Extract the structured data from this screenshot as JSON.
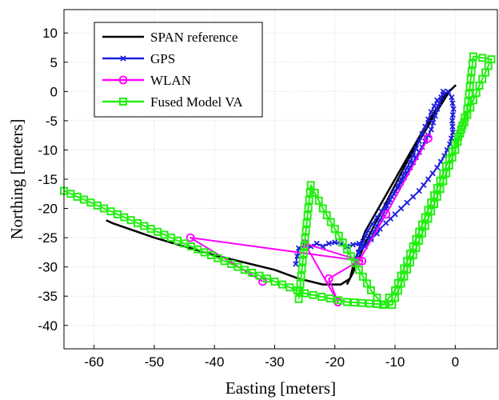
{
  "chart_data": {
    "type": "line",
    "title": "",
    "xlabel": "Easting [meters]",
    "ylabel": "Northing [meters]",
    "xlim": [
      -65,
      7
    ],
    "ylim": [
      -44,
      14
    ],
    "xticks": [
      -60,
      -50,
      -40,
      -30,
      -20,
      -10,
      0
    ],
    "yticks": [
      10,
      5,
      0,
      -5,
      -10,
      -15,
      -20,
      -25,
      -30,
      -35,
      -40
    ],
    "grid": true,
    "legend_position": "top-left",
    "series": [
      {
        "name": "SPAN reference",
        "color": "#000000",
        "marker": "none",
        "x": [
          -58,
          -57,
          -50,
          -40,
          -30,
          -26,
          -22,
          -19,
          -17.5,
          -17,
          -15,
          -10,
          -5,
          -2,
          0,
          -1,
          -4,
          -8,
          -12,
          -15,
          -17,
          -18
        ],
        "y": [
          -22,
          -22.5,
          -25,
          -28,
          -30.5,
          -32,
          -33,
          -33,
          -32,
          -30,
          -24,
          -15,
          -6,
          -1,
          1,
          0,
          -5,
          -12,
          -20,
          -26,
          -31,
          -33
        ]
      },
      {
        "name": "GPS",
        "color": "#1f1fe0",
        "marker": "x",
        "x": [
          -26.5,
          -26,
          -25,
          -24,
          -23,
          -22,
          -21,
          -20,
          -19,
          -18,
          -17,
          -16,
          -15,
          -14,
          -13,
          -12,
          -11,
          -10,
          -9,
          -8,
          -7,
          -6,
          -5,
          -4,
          -3,
          -2,
          -1.2,
          -0.6,
          -0.3,
          -0.5,
          -0.4,
          -0.9,
          -1.8,
          -3,
          -4.5,
          -6,
          -8,
          -10,
          -11.5,
          -12.5,
          -13,
          -14,
          -15,
          -16,
          -16.5,
          -14.5,
          -13,
          -11.5,
          -9.5,
          -7.5,
          -5.5,
          -4,
          -3,
          -2
        ],
        "y": [
          -29.5,
          -26.8,
          -26.3,
          -26.5,
          -26,
          -26.5,
          -26,
          -25.8,
          -26,
          -26.5,
          -26.2,
          -26,
          -26.5,
          -25,
          -23,
          -21,
          -19,
          -17,
          -15,
          -13,
          -11,
          -8.5,
          -6,
          -3.5,
          -1.5,
          -0.5,
          0,
          -1,
          -3,
          -5,
          -7,
          -9,
          -11,
          -13,
          -15,
          -17,
          -19,
          -21,
          -22.5,
          -23.5,
          -24.3,
          -25.3,
          -26.5,
          -27.5,
          -28.5,
          -23.8,
          -21.5,
          -19.5,
          -16.5,
          -13,
          -9.5,
          -6.5,
          -3,
          0
        ]
      },
      {
        "name": "WLAN",
        "color": "#ff00ff",
        "marker": "o",
        "x": [
          -32,
          -44,
          -15.5,
          -25,
          -19.5,
          -21,
          -16,
          -11.5,
          -4.5
        ],
        "y": [
          -32.5,
          -25,
          -29,
          -26,
          -36,
          -32,
          -29,
          -21,
          -8
        ]
      },
      {
        "name": "Fused Model VA",
        "color": "#22ee11",
        "marker": "s",
        "x": [
          -65,
          -55,
          -45,
          -35,
          -25,
          -18,
          -10.5,
          -7,
          -3,
          0,
          2,
          3,
          6,
          4,
          2,
          0,
          -2,
          -4,
          -6,
          -8,
          -10,
          -12,
          -14,
          -16,
          -18,
          -20,
          -22,
          -24,
          -26
        ],
        "y": [
          -17,
          -21.5,
          -26,
          -30.5,
          -34.5,
          -36,
          -36.5,
          -28,
          -18,
          -10,
          -3,
          6,
          5.5,
          1,
          -4,
          -9,
          -14,
          -19,
          -24,
          -29,
          -34,
          -36.5,
          -34,
          -30.5,
          -27,
          -23.5,
          -20,
          -16,
          -35.5
        ]
      }
    ]
  }
}
